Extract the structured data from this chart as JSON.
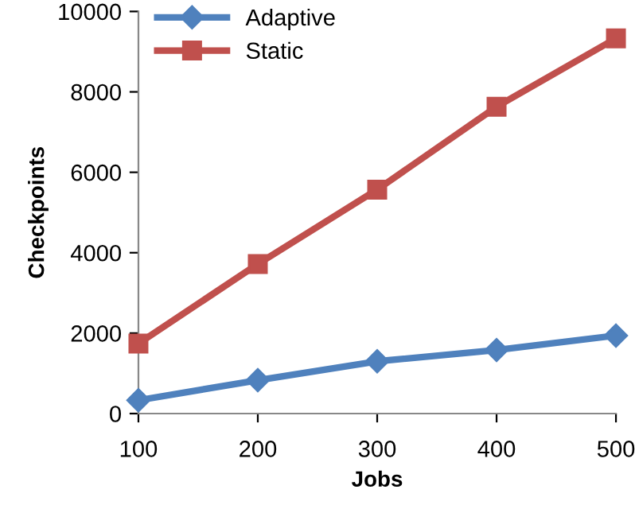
{
  "chart_data": {
    "type": "line",
    "xlabel": "Jobs",
    "ylabel": "Checkpoints",
    "x": [
      100,
      200,
      300,
      400,
      500
    ],
    "series": [
      {
        "name": "Adaptive",
        "color": "#4f81bd",
        "marker": "diamond",
        "values": [
          330,
          830,
          1300,
          1580,
          1940
        ]
      },
      {
        "name": "Static",
        "color": "#c0504d",
        "marker": "square",
        "values": [
          1740,
          3720,
          5570,
          7630,
          9330
        ]
      }
    ],
    "xlim": [
      100,
      500
    ],
    "xticks": [
      100,
      200,
      300,
      400,
      500
    ],
    "ylim": [
      0,
      10000
    ],
    "yticks": [
      0,
      2000,
      4000,
      6000,
      8000,
      10000
    ],
    "grid": false,
    "legend": "top left",
    "line_style": "solid"
  }
}
